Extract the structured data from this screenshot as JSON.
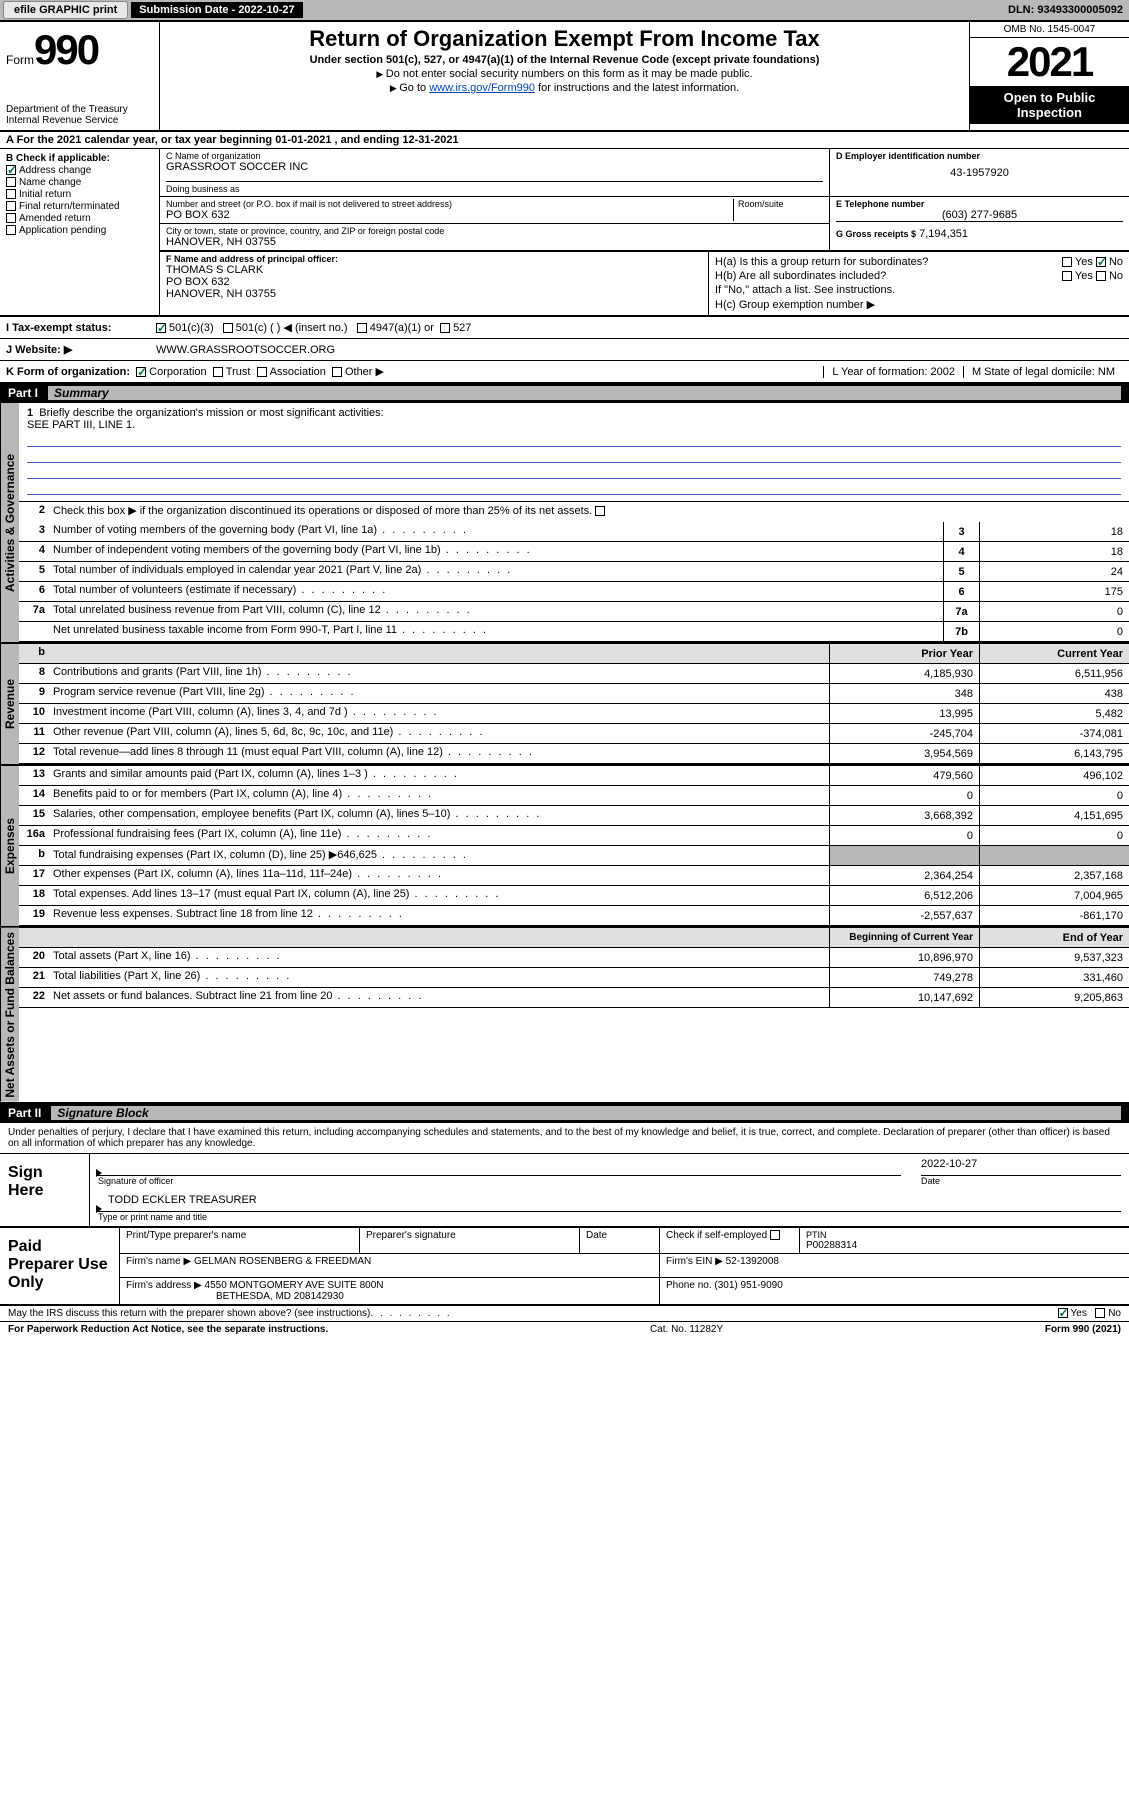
{
  "colors": {
    "header_gray": "#b8b8b8",
    "black": "#000000",
    "link_blue": "#0047bb",
    "check_green": "#007a3d",
    "underline_blue": "#5050c0",
    "col_head_bg": "#e0e0e0"
  },
  "top_bar": {
    "efile_btn": "efile GRAPHIC print",
    "submission_label": "Submission Date - 2022-10-27",
    "dln": "DLN: 93493300005092"
  },
  "header": {
    "form_label": "Form",
    "form_number": "990",
    "dept": "Department of the Treasury\nInternal Revenue Service",
    "title": "Return of Organization Exempt From Income Tax",
    "subtitle": "Under section 501(c), 527, or 4947(a)(1) of the Internal Revenue Code (except private foundations)",
    "note1": "Do not enter social security numbers on this form as it may be made public.",
    "note2_pre": "Go to ",
    "note2_link": "www.irs.gov/Form990",
    "note2_post": " for instructions and the latest information.",
    "omb": "OMB No. 1545-0047",
    "year": "2021",
    "open_public": "Open to Public Inspection"
  },
  "row_A": "A For the 2021 calendar year, or tax year beginning 01-01-2021   , and ending 12-31-2021",
  "col_B": {
    "label": "B Check if applicable:",
    "items": [
      {
        "checked": true,
        "label": "Address change"
      },
      {
        "checked": false,
        "label": "Name change"
      },
      {
        "checked": false,
        "label": "Initial return"
      },
      {
        "checked": false,
        "label": "Final return/terminated"
      },
      {
        "checked": false,
        "label": "Amended return"
      },
      {
        "checked": false,
        "label": "Application pending"
      }
    ]
  },
  "block_C": {
    "name_label": "C Name of organization",
    "name": "GRASSROOT SOCCER INC",
    "dba_label": "Doing business as",
    "dba": "",
    "addr_label": "Number and street (or P.O. box if mail is not delivered to street address)",
    "room_label": "Room/suite",
    "addr": "PO BOX 632",
    "city_label": "City or town, state or province, country, and ZIP or foreign postal code",
    "city": "HANOVER, NH  03755"
  },
  "block_D": {
    "label": "D Employer identification number",
    "value": "43-1957920"
  },
  "block_E": {
    "label": "E Telephone number",
    "value": "(603) 277-9685"
  },
  "block_G": {
    "label": "G Gross receipts $",
    "value": "7,194,351"
  },
  "block_F": {
    "label": "F Name and address of principal officer:",
    "name": "THOMAS S CLARK",
    "addr1": "PO BOX 632",
    "addr2": "HANOVER, NH  03755"
  },
  "block_H": {
    "a": "H(a)  Is this a group return for subordinates?",
    "a_yes": "Yes",
    "a_no": "No",
    "a_no_checked": true,
    "b": "H(b)  Are all subordinates included?",
    "b_yes": "Yes",
    "b_no": "No",
    "b_note": "If \"No,\" attach a list. See instructions.",
    "c": "H(c)  Group exemption number ▶"
  },
  "row_I": {
    "label": "I   Tax-exempt status:",
    "opts": {
      "c3": "501(c)(3)",
      "c3_checked": true,
      "c": "501(c) (  ) ◀ (insert no.)",
      "a1": "4947(a)(1) or",
      "s527": "527"
    }
  },
  "row_J": {
    "label": "J   Website: ▶",
    "value": "WWW.GRASSROOTSOCCER.ORG"
  },
  "row_K": {
    "label": "K Form of organization:",
    "opts": {
      "corp": "Corporation",
      "corp_checked": true,
      "trust": "Trust",
      "assoc": "Association",
      "other": "Other ▶"
    },
    "L": "L Year of formation: 2002",
    "M": "M State of legal domicile: NM"
  },
  "part1": {
    "part_label": "Part I",
    "title": "Summary",
    "side_gov": "Activities & Governance",
    "side_rev": "Revenue",
    "side_exp": "Expenses",
    "side_net": "Net Assets or Fund Balances",
    "line1_label": "Briefly describe the organization's mission or most significant activities:",
    "line1_value": "SEE PART III, LINE 1.",
    "line2": "Check this box ▶        if the organization discontinued its operations or disposed of more than 25% of its net assets.",
    "gov_lines": [
      {
        "n": "3",
        "desc": "Number of voting members of the governing body (Part VI, line 1a)",
        "box": "3",
        "val": "18"
      },
      {
        "n": "4",
        "desc": "Number of independent voting members of the governing body (Part VI, line 1b)",
        "box": "4",
        "val": "18"
      },
      {
        "n": "5",
        "desc": "Total number of individuals employed in calendar year 2021 (Part V, line 2a)",
        "box": "5",
        "val": "24"
      },
      {
        "n": "6",
        "desc": "Total number of volunteers (estimate if necessary)",
        "box": "6",
        "val": "175"
      },
      {
        "n": "7a",
        "desc": "Total unrelated business revenue from Part VIII, column (C), line 12",
        "box": "7a",
        "val": "0"
      },
      {
        "n": "",
        "desc": "Net unrelated business taxable income from Form 990-T, Part I, line 11",
        "box": "7b",
        "val": "0"
      }
    ],
    "col_prior": "Prior Year",
    "col_current": "Current Year",
    "rev_lines": [
      {
        "n": "8",
        "desc": "Contributions and grants (Part VIII, line 1h)",
        "prior": "4,185,930",
        "curr": "6,511,956"
      },
      {
        "n": "9",
        "desc": "Program service revenue (Part VIII, line 2g)",
        "prior": "348",
        "curr": "438"
      },
      {
        "n": "10",
        "desc": "Investment income (Part VIII, column (A), lines 3, 4, and 7d )",
        "prior": "13,995",
        "curr": "5,482"
      },
      {
        "n": "11",
        "desc": "Other revenue (Part VIII, column (A), lines 5, 6d, 8c, 9c, 10c, and 11e)",
        "prior": "-245,704",
        "curr": "-374,081"
      },
      {
        "n": "12",
        "desc": "Total revenue—add lines 8 through 11 (must equal Part VIII, column (A), line 12)",
        "prior": "3,954,569",
        "curr": "6,143,795"
      }
    ],
    "exp_lines": [
      {
        "n": "13",
        "desc": "Grants and similar amounts paid (Part IX, column (A), lines 1–3 )",
        "prior": "479,560",
        "curr": "496,102"
      },
      {
        "n": "14",
        "desc": "Benefits paid to or for members (Part IX, column (A), line 4)",
        "prior": "0",
        "curr": "0"
      },
      {
        "n": "15",
        "desc": "Salaries, other compensation, employee benefits (Part IX, column (A), lines 5–10)",
        "prior": "3,668,392",
        "curr": "4,151,695"
      },
      {
        "n": "16a",
        "desc": "Professional fundraising fees (Part IX, column (A), line 11e)",
        "prior": "0",
        "curr": "0"
      },
      {
        "n": "b",
        "desc": "Total fundraising expenses (Part IX, column (D), line 25) ▶646,625",
        "prior": "",
        "curr": "",
        "shaded": true
      },
      {
        "n": "17",
        "desc": "Other expenses (Part IX, column (A), lines 11a–11d, 11f–24e)",
        "prior": "2,364,254",
        "curr": "2,357,168"
      },
      {
        "n": "18",
        "desc": "Total expenses. Add lines 13–17 (must equal Part IX, column (A), line 25)",
        "prior": "6,512,206",
        "curr": "7,004,965"
      },
      {
        "n": "19",
        "desc": "Revenue less expenses. Subtract line 18 from line 12",
        "prior": "-2,557,637",
        "curr": "-861,170"
      }
    ],
    "col_begin": "Beginning of Current Year",
    "col_end": "End of Year",
    "net_lines": [
      {
        "n": "20",
        "desc": "Total assets (Part X, line 16)",
        "prior": "10,896,970",
        "curr": "9,537,323"
      },
      {
        "n": "21",
        "desc": "Total liabilities (Part X, line 26)",
        "prior": "749,278",
        "curr": "331,460"
      },
      {
        "n": "22",
        "desc": "Net assets or fund balances. Subtract line 21 from line 20",
        "prior": "10,147,692",
        "curr": "9,205,863"
      }
    ]
  },
  "part2": {
    "part_label": "Part II",
    "title": "Signature Block",
    "decl": "Under penalties of perjury, I declare that I have examined this return, including accompanying schedules and statements, and to the best of my knowledge and belief, it is true, correct, and complete. Declaration of preparer (other than officer) is based on all information of which preparer has any knowledge.",
    "sign_here": "Sign Here",
    "sig_officer": "Signature of officer",
    "sig_date_label": "Date",
    "sig_date": "2022-10-27",
    "officer_name": "TODD ECKLER  TREASURER",
    "officer_name_label": "Type or print name and title",
    "paid_prep": "Paid Preparer Use Only",
    "prep_name_label": "Print/Type preparer's name",
    "prep_sig_label": "Preparer's signature",
    "prep_date_label": "Date",
    "prep_self": "Check         if self-employed",
    "ptin_label": "PTIN",
    "ptin": "P00288314",
    "firm_name_label": "Firm's name    ▶",
    "firm_name": "GELMAN ROSENBERG & FREEDMAN",
    "firm_ein_label": "Firm's EIN ▶",
    "firm_ein": "52-1392008",
    "firm_addr_label": "Firm's address ▶",
    "firm_addr1": "4550 MONTGOMERY AVE SUITE 800N",
    "firm_addr2": "BETHESDA, MD  208142930",
    "firm_phone_label": "Phone no.",
    "firm_phone": "(301) 951-9090"
  },
  "footer": {
    "discuss": "May the IRS discuss this return with the preparer shown above? (see instructions)",
    "yes": "Yes",
    "no": "No",
    "yes_checked": true,
    "paperwork": "For Paperwork Reduction Act Notice, see the separate instructions.",
    "cat": "Cat. No. 11282Y",
    "form": "Form 990 (2021)"
  }
}
